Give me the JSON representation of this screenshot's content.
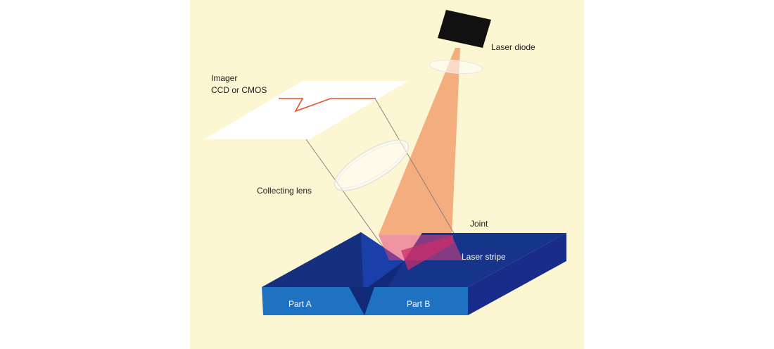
{
  "colors": {
    "background": "#fdf6d2",
    "part_top": "#15307f",
    "part_front": "#1f72c2",
    "part_side": "#1a2c8a",
    "laser_beam": "#f2a574",
    "laser_stripe": "#e0427a",
    "trace": "#e0522a",
    "diode": "#111111"
  },
  "labels": {
    "laser_diode": "Laser diode",
    "imager_line1": "Imager",
    "imager_line2": "CCD or CMOS",
    "collecting_lens": "Collecting lens",
    "joint": "Joint",
    "laser_stripe": "Laser stripe",
    "part_a": "Part A",
    "part_b": "Part B"
  }
}
